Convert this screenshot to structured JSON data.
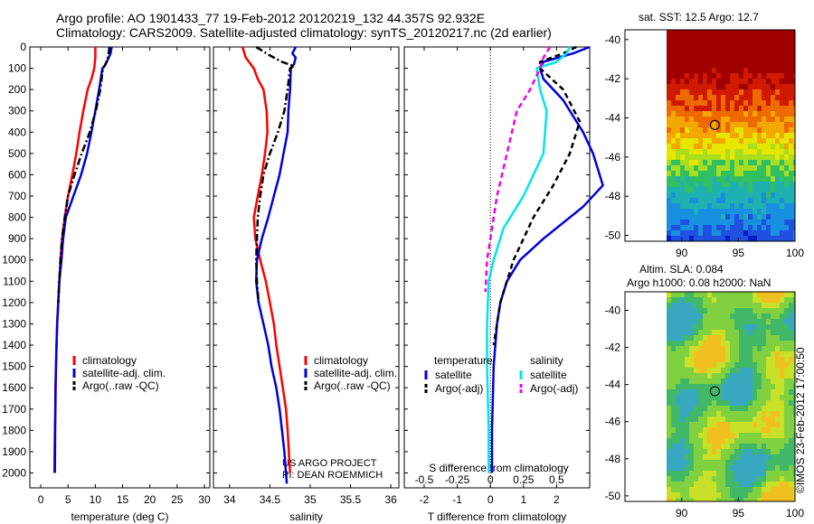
{
  "title": {
    "line1": "Argo profile: AO 1901433_77 19-Feb-2012 20120219_132 44.357S 92.932E",
    "line2": "Climatology: CARS2009. Satellite-adjusted climatology: synTS_20120217.nc (2d earlier)"
  },
  "sst_title": "sat. SST: 12.5 Argo: 12.7",
  "sla_title": {
    "line1": "Altim. SLA: 0.084",
    "line2": "Argo h1000: 0.08 h2000: NaN"
  },
  "credit": "©IMOS 23-Feb-2012 17:00:50",
  "project": {
    "line1": "US ARGO PROJECT",
    "line2": "PI: DEAN ROEMMICH"
  },
  "colors": {
    "climatology": "#ff0000",
    "satellite": "#0000dd",
    "argo": "#000000",
    "sat_diff_s": "#00e5ee",
    "argo_diff_s": "#ee00ee"
  },
  "chart_data": [
    {
      "type": "line",
      "xlabel": "temperature (deg C)",
      "ylabel": "",
      "xlim": [
        -2,
        31
      ],
      "ylim": [
        2070,
        0
      ],
      "xticks": [
        "0",
        "5",
        "10",
        "15",
        "20",
        "25",
        "30"
      ],
      "yticks": [
        "0",
        "100",
        "200",
        "300",
        "400",
        "500",
        "600",
        "700",
        "800",
        "900",
        "1000",
        "1100",
        "1200",
        "1300",
        "1400",
        "1500",
        "1600",
        "1700",
        "1800",
        "1900",
        "2000"
      ],
      "legend": [
        "climatology",
        "satellite-adj. clim.",
        "Argo(..raw -QC)"
      ],
      "series": [
        {
          "name": "climatology",
          "style": "solid",
          "color": "#ff0000",
          "x": [
            10.0,
            10.0,
            9.8,
            9.3,
            8.6,
            7.8,
            7.1,
            6.5,
            5.8,
            5.0,
            4.4,
            3.9,
            3.6,
            3.4,
            3.2,
            3.0,
            2.9,
            2.8,
            2.75,
            2.7,
            2.6,
            2.5
          ],
          "y": [
            0,
            50,
            100,
            150,
            200,
            300,
            400,
            500,
            600,
            700,
            800,
            900,
            1000,
            1100,
            1200,
            1300,
            1400,
            1500,
            1600,
            1700,
            1800,
            2000
          ]
        },
        {
          "name": "satellite-adj. clim.",
          "style": "solid",
          "color": "#0000dd",
          "x": [
            13.0,
            12.8,
            12.3,
            11.7,
            11.3,
            10.7,
            10.0,
            9.3,
            8.5,
            7.4,
            6.0,
            4.6,
            4.1,
            3.8,
            3.4,
            3.2,
            3.0,
            2.9,
            2.8,
            2.7,
            2.6
          ],
          "y": [
            0,
            30,
            60,
            90,
            100,
            200,
            300,
            400,
            500,
            600,
            700,
            800,
            900,
            1000,
            1100,
            1200,
            1300,
            1400,
            1500,
            1600,
            2000
          ]
        },
        {
          "name": "Argo(..raw -QC)",
          "style": "dashdot",
          "color": "#000000",
          "x": [
            12.6,
            12.5,
            12.3,
            11.9,
            11.4,
            10.9,
            10.1,
            9.0,
            7.5,
            6.2,
            5.0,
            4.4,
            3.9,
            3.6,
            3.4,
            3.2
          ],
          "y": [
            0,
            20,
            50,
            80,
            100,
            200,
            300,
            400,
            500,
            600,
            700,
            800,
            900,
            1000,
            1100,
            1200
          ]
        }
      ]
    },
    {
      "type": "line",
      "xlabel": "salinity",
      "xlim": [
        33.8,
        36.1
      ],
      "ylim": [
        2070,
        0
      ],
      "xticks": [
        "34",
        "34.5",
        "35",
        "35.5",
        "36"
      ],
      "legend": [
        "climatology",
        "satellite-adj. clim.",
        "Argo(..raw -QC)"
      ],
      "series": [
        {
          "name": "climatology",
          "style": "solid",
          "color": "#ff0000",
          "x": [
            34.16,
            34.2,
            34.3,
            34.35,
            34.42,
            34.46,
            34.47,
            34.44,
            34.4,
            34.35,
            34.3,
            34.32,
            34.38,
            34.45,
            34.5,
            34.55,
            34.58,
            34.62,
            34.66,
            34.7,
            34.72,
            34.75
          ],
          "y": [
            0,
            50,
            100,
            150,
            200,
            300,
            400,
            500,
            600,
            700,
            800,
            900,
            1000,
            1100,
            1200,
            1300,
            1400,
            1500,
            1600,
            1700,
            1800,
            2000
          ]
        },
        {
          "name": "satellite-adj. clim.",
          "style": "solid",
          "color": "#0000dd",
          "x": [
            34.82,
            34.78,
            34.82,
            34.8,
            34.76,
            34.75,
            34.73,
            34.72,
            34.67,
            34.62,
            34.55,
            34.48,
            34.4,
            34.34,
            34.33,
            34.36,
            34.42,
            34.48,
            34.52,
            34.58,
            34.62,
            34.65,
            34.68,
            34.7,
            34.71
          ],
          "y": [
            0,
            30,
            50,
            80,
            100,
            200,
            300,
            400,
            500,
            600,
            700,
            800,
            900,
            1000,
            1100,
            1200,
            1300,
            1400,
            1500,
            1600,
            1700,
            1800,
            1900,
            2000,
            2050
          ]
        },
        {
          "name": "Argo(..raw -QC)",
          "style": "dashdot",
          "color": "#000000",
          "x": [
            34.33,
            34.5,
            34.65,
            34.8,
            34.75,
            34.72,
            34.68,
            34.6,
            34.5,
            34.42,
            34.38,
            34.35,
            34.34,
            34.33,
            34.34,
            34.36
          ],
          "y": [
            0,
            40,
            70,
            90,
            100,
            200,
            300,
            400,
            500,
            600,
            700,
            800,
            900,
            1000,
            1100,
            1200
          ]
        }
      ]
    },
    {
      "type": "line",
      "xlabel": "T difference from climatology",
      "title_bottom": "S difference from climatology",
      "xlim": [
        -2.6,
        3.0
      ],
      "ylim": [
        2070,
        0
      ],
      "xticks": [
        "-2",
        "-1",
        "0",
        "1",
        "2"
      ],
      "xticks_top": [
        "-0.5",
        "-0.25",
        "0",
        "0.25",
        "0.5"
      ],
      "legend_titles": [
        "temperature",
        "salinity"
      ],
      "legend": [
        "satellite",
        "Argo(-adj)",
        "satellite",
        "Argo(-adj)"
      ],
      "series": [
        {
          "name": "satellite",
          "group": "temperature",
          "style": "solid",
          "color": "#0000dd",
          "x": [
            3.0,
            2.5,
            1.6,
            1.5,
            1.6,
            2.2,
            2.8,
            3.1,
            3.4,
            2.8,
            1.6,
            0.9,
            0.5,
            0.3,
            0.2,
            0.1,
            0.05,
            0.05
          ],
          "y": [
            0,
            30,
            70,
            100,
            150,
            250,
            400,
            500,
            650,
            750,
            900,
            1000,
            1100,
            1200,
            1300,
            1500,
            1800,
            2000
          ]
        },
        {
          "name": "Argo(-adj)",
          "group": "temperature",
          "style": "dashed",
          "color": "#000000",
          "x": [
            2.6,
            2.2,
            1.5,
            1.5,
            2.2,
            2.7,
            2.4,
            1.9,
            1.3,
            1.0,
            0.7,
            0.5,
            0.3,
            0.2,
            0.1
          ],
          "y": [
            0,
            30,
            70,
            100,
            200,
            350,
            500,
            650,
            800,
            900,
            1000,
            1100,
            1200,
            1300,
            1400
          ]
        },
        {
          "name": "satellite",
          "group": "salinity",
          "style": "solid",
          "color": "#00e5ee",
          "x": [
            2.4,
            2.3,
            2.0,
            1.4,
            1.5,
            1.7,
            1.6,
            1.0,
            0.4,
            0.1,
            -0.05,
            -0.1,
            -0.1,
            -0.05,
            -0.05
          ],
          "y": [
            0,
            30,
            70,
            100,
            200,
            300,
            500,
            700,
            850,
            1000,
            1100,
            1300,
            1500,
            1800,
            2000
          ]
        },
        {
          "name": "Argo(-adj)",
          "group": "salinity",
          "style": "dashed",
          "color": "#ee00ee",
          "x": [
            1.8,
            1.6,
            1.5,
            1.2,
            0.8,
            0.5,
            0.2,
            0.0,
            -0.1,
            -0.15
          ],
          "y": [
            0,
            50,
            100,
            200,
            300,
            500,
            700,
            900,
            1000,
            1150
          ]
        }
      ]
    },
    {
      "type": "heatmap",
      "title": "sat. SST: 12.5 Argo: 12.7",
      "xlim": [
        85,
        100
      ],
      "ylim": [
        -50.3,
        -39.5
      ],
      "xticks": [
        "90",
        "95",
        "100"
      ],
      "yticks": [
        "-40",
        "-42",
        "-44",
        "-46",
        "-48",
        "-50"
      ],
      "marker": {
        "x": 92.93,
        "y": -44.36
      }
    },
    {
      "type": "heatmap",
      "title": "Altim. SLA: 0.084",
      "xlim": [
        85,
        100
      ],
      "ylim": [
        -50.3,
        -39.0
      ],
      "xticks": [
        "90",
        "95",
        "100"
      ],
      "yticks": [
        "-40",
        "-42",
        "-44",
        "-46",
        "-48",
        "-50"
      ],
      "marker": {
        "x": 92.93,
        "y": -44.36
      }
    }
  ]
}
